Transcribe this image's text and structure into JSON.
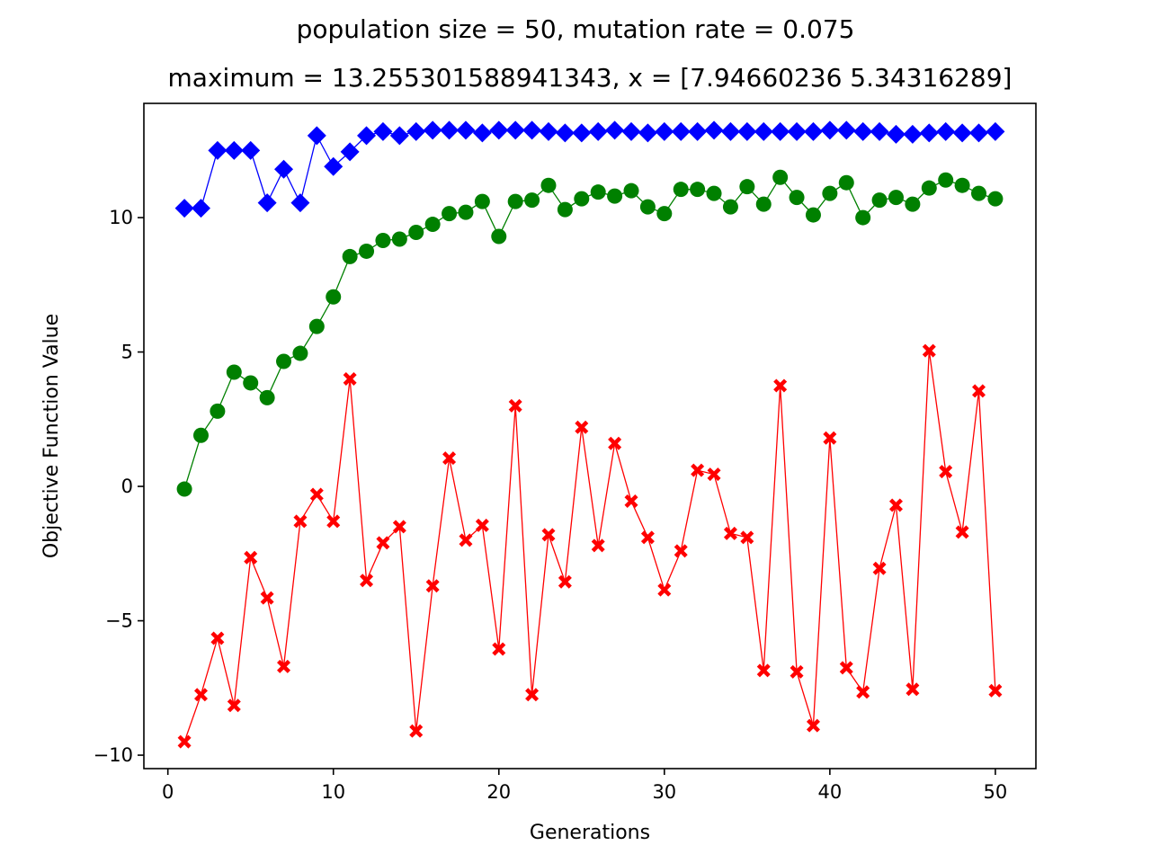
{
  "chart_data": {
    "type": "line",
    "title": "population size = 50, mutation rate = 0.075",
    "subtitle": "maximum = 13.255301588941343, x = [7.94660236 5.34316289]",
    "xlabel": "Generations",
    "ylabel": "Objective Function Value",
    "xlim": [
      -1.45,
      52.45
    ],
    "ylim": [
      -10.5,
      14.25
    ],
    "x_ticks": [
      0,
      10,
      20,
      30,
      40,
      50
    ],
    "x_tick_labels": [
      "0",
      "10",
      "20",
      "30",
      "40",
      "50"
    ],
    "y_ticks": [
      -10,
      -5,
      0,
      5,
      10
    ],
    "y_tick_labels": [
      "−10",
      "−5",
      "0",
      "5",
      "10"
    ],
    "grid": false,
    "x": [
      1,
      2,
      3,
      4,
      5,
      6,
      7,
      8,
      9,
      10,
      11,
      12,
      13,
      14,
      15,
      16,
      17,
      18,
      19,
      20,
      21,
      22,
      23,
      24,
      25,
      26,
      27,
      28,
      29,
      30,
      31,
      32,
      33,
      34,
      35,
      36,
      37,
      38,
      39,
      40,
      41,
      42,
      43,
      44,
      45,
      46,
      47,
      48,
      49,
      50
    ],
    "series": [
      {
        "color": "#0000ff",
        "marker": "diamond",
        "values": [
          10.35,
          10.35,
          12.5,
          12.5,
          12.5,
          10.55,
          11.8,
          10.55,
          13.05,
          11.9,
          12.45,
          13.05,
          13.2,
          13.05,
          13.2,
          13.25,
          13.25,
          13.25,
          13.15,
          13.25,
          13.25,
          13.25,
          13.2,
          13.15,
          13.15,
          13.2,
          13.25,
          13.2,
          13.15,
          13.2,
          13.2,
          13.2,
          13.25,
          13.2,
          13.2,
          13.2,
          13.2,
          13.2,
          13.2,
          13.25,
          13.25,
          13.2,
          13.2,
          13.1,
          13.1,
          13.15,
          13.2,
          13.15,
          13.15,
          13.2
        ]
      },
      {
        "color": "#008000",
        "marker": "circle",
        "values": [
          -0.1,
          1.9,
          2.8,
          4.25,
          3.85,
          3.3,
          4.65,
          4.95,
          5.95,
          7.05,
          8.55,
          8.75,
          9.15,
          9.2,
          9.45,
          9.75,
          10.15,
          10.2,
          10.6,
          9.3,
          10.6,
          10.65,
          11.2,
          10.3,
          10.7,
          10.95,
          10.8,
          11.0,
          10.4,
          10.15,
          11.05,
          11.05,
          10.9,
          10.4,
          11.15,
          10.5,
          11.5,
          10.75,
          10.1,
          10.9,
          11.3,
          10.0,
          10.65,
          10.75,
          10.5,
          11.1,
          11.4,
          11.2,
          10.9,
          10.7
        ]
      },
      {
        "color": "#ff0000",
        "marker": "x",
        "values": [
          -9.5,
          -7.75,
          -5.65,
          -8.15,
          -2.65,
          -4.15,
          -6.7,
          -1.3,
          -0.3,
          -1.3,
          4.0,
          -3.5,
          -2.1,
          -1.5,
          -9.1,
          -3.7,
          1.05,
          -2.0,
          -1.45,
          -6.05,
          3.0,
          -7.75,
          -1.8,
          -3.55,
          2.2,
          -2.2,
          1.6,
          -0.55,
          -1.9,
          -3.85,
          -2.4,
          0.6,
          0.45,
          -1.75,
          -1.9,
          -6.85,
          3.75,
          -6.9,
          -8.9,
          1.8,
          -6.75,
          -7.65,
          -3.05,
          -0.7,
          -7.55,
          5.05,
          0.55,
          -1.7,
          3.55,
          -7.6
        ]
      }
    ]
  }
}
